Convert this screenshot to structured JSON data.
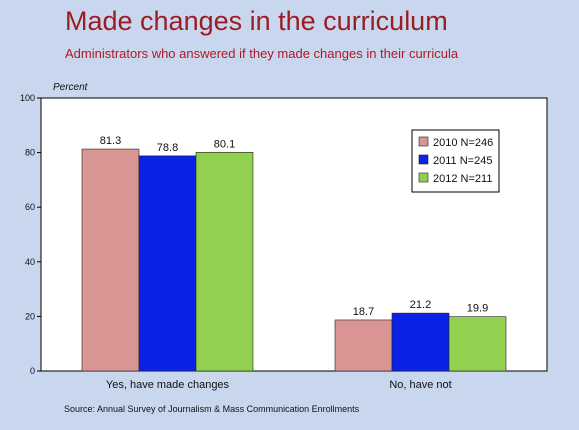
{
  "header": {
    "title": "Made changes in the curriculum",
    "subtitle": "Administrators who answered if they made changes in their curricula"
  },
  "footer": {
    "source": "Source: Annual Survey of Journalism & Mass Communication Enrollments"
  },
  "chart_data": {
    "type": "bar",
    "title": "Made changes in the curriculum",
    "subtitle": "Administrators who answered if they made changes in their curricula",
    "ylabel": "Percent",
    "xlabel": "",
    "ylim": [
      0,
      100
    ],
    "yticks": [
      0,
      20,
      40,
      60,
      80,
      100
    ],
    "categories": [
      "Yes, have made changes",
      "No, have not"
    ],
    "series": [
      {
        "name": "2010 N=246",
        "values": [
          81.3,
          18.7
        ],
        "labels": [
          "81.3",
          "18.7"
        ],
        "color": "#d99594"
      },
      {
        "name": "2011 N=245",
        "values": [
          78.8,
          21.2
        ],
        "labels": [
          "78.8",
          "21.2"
        ],
        "color": "#0a22e6"
      },
      {
        "name": "2012 N=211",
        "values": [
          80.1,
          19.9
        ],
        "labels": [
          "80.1",
          "19.9"
        ],
        "color": "#92d050"
      }
    ],
    "legend": "top-right",
    "grid": false
  }
}
